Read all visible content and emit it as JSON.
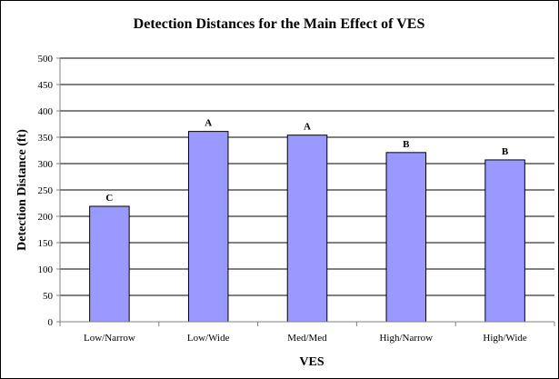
{
  "chart_data": {
    "type": "bar",
    "title": "Detection Distances for the Main Effect of VES",
    "xlabel": "VES",
    "ylabel": "Detection Distance (ft)",
    "categories": [
      "Low/Narrow",
      "Low/Wide",
      "Med/Med",
      "High/Narrow",
      "High/Wide"
    ],
    "values": [
      219,
      361,
      354,
      321,
      307
    ],
    "data_labels": [
      "C",
      "A",
      "A",
      "B",
      "B"
    ],
    "ylim": [
      0,
      500
    ],
    "yticks": [
      0,
      50,
      100,
      150,
      200,
      250,
      300,
      350,
      400,
      450,
      500
    ],
    "grid": true,
    "legend": "none",
    "colors": {
      "bar_fill": "#9999ff",
      "bar_stroke": "#000000",
      "grid": "#000000",
      "axis": "#808080",
      "background": "#ffffff"
    }
  }
}
